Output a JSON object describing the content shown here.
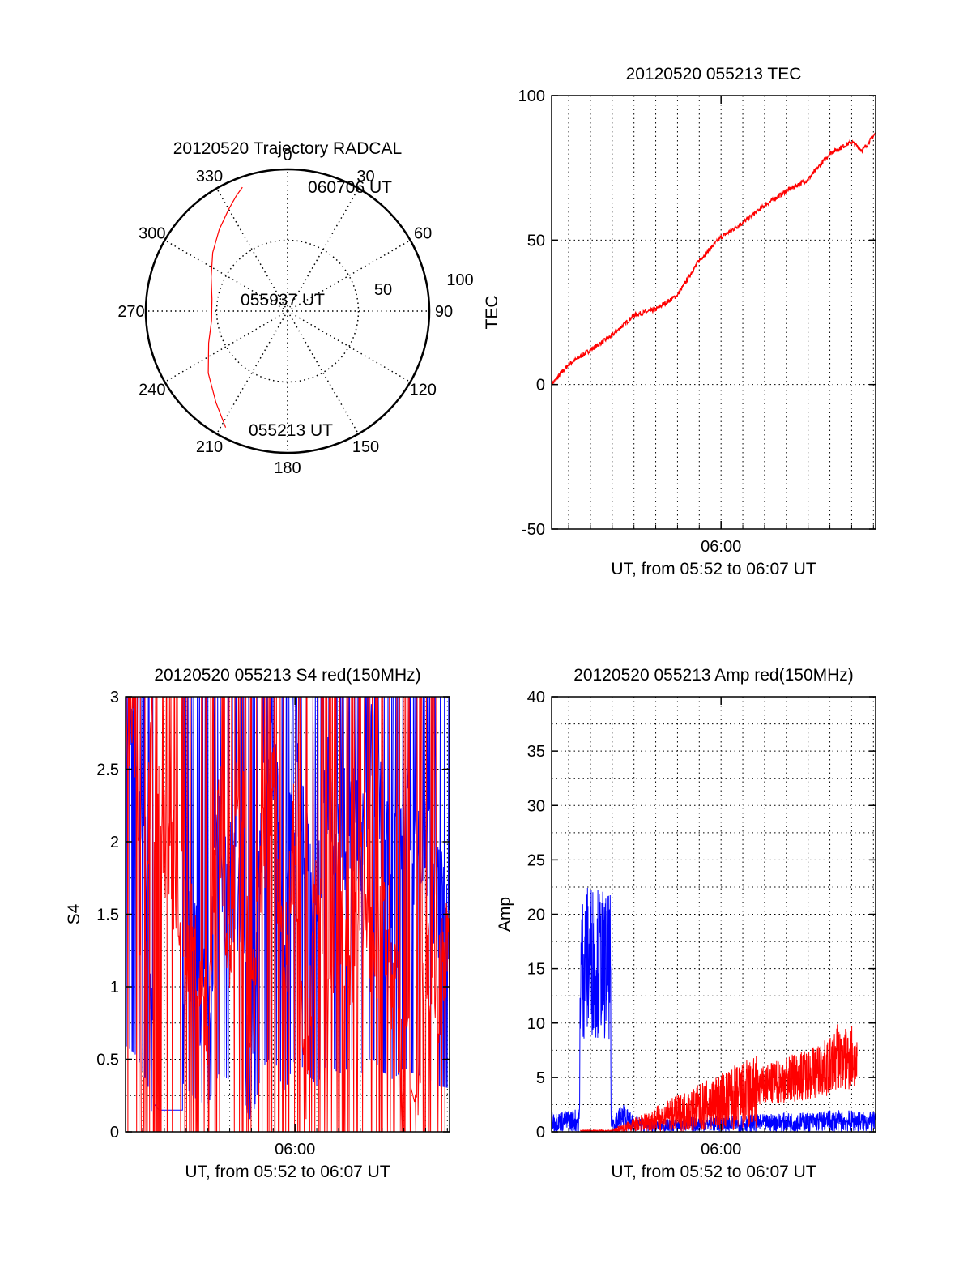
{
  "colors": {
    "red": "#ff0000",
    "blue": "#0000ff",
    "axis": "#000000",
    "grid": "#000000"
  },
  "chart_data": [
    {
      "id": "polar",
      "type": "scatter",
      "subtype": "polar-trajectory",
      "title": "20120520 Trajectory RADCAL",
      "angle_ticks": [
        "0",
        "30",
        "60",
        "90",
        "120",
        "150",
        "180",
        "210",
        "240",
        "270",
        "300",
        "330"
      ],
      "radial_ticks": [
        "50",
        "100"
      ],
      "rlim": [
        0,
        100
      ],
      "grid": true,
      "annotations": [
        {
          "text": "060706 UT",
          "point": "end"
        },
        {
          "text": "055937 UT",
          "point": "mid"
        },
        {
          "text": "055213 UT",
          "point": "start"
        }
      ],
      "series": [
        {
          "color": "red",
          "points": [
            {
              "az": 208,
              "r": 93
            },
            {
              "az": 218,
              "r": 82
            },
            {
              "az": 232,
              "r": 71
            },
            {
              "az": 248,
              "r": 60
            },
            {
              "az": 263,
              "r": 54
            },
            {
              "az": 279,
              "r": 54
            },
            {
              "az": 294,
              "r": 59
            },
            {
              "az": 308,
              "r": 67
            },
            {
              "az": 320,
              "r": 75
            },
            {
              "az": 330,
              "r": 83
            },
            {
              "az": 336,
              "r": 89
            },
            {
              "az": 340,
              "r": 93
            }
          ]
        }
      ]
    },
    {
      "id": "tec",
      "type": "line",
      "title": "20120520 055213 TEC",
      "xlabel": "UT, from 05:52 to 06:07 UT",
      "ylabel": "TEC",
      "xlim": [
        "05:52:13",
        "06:07:06"
      ],
      "ylim": [
        -50,
        100
      ],
      "yticks": [
        "-50",
        "0",
        "50",
        "100"
      ],
      "xticks": [
        {
          "at": "06:00:00",
          "label": "06:00"
        }
      ],
      "grid": true,
      "series": [
        {
          "color": "red",
          "x": [
            "05:52:13",
            "05:53:00",
            "05:54:00",
            "05:55:00",
            "05:56:00",
            "05:57:00",
            "05:58:00",
            "05:59:00",
            "06:00:00",
            "06:01:00",
            "06:02:00",
            "06:03:00",
            "06:04:00",
            "06:05:00",
            "06:06:00",
            "06:06:30",
            "06:07:06"
          ],
          "y": [
            0,
            7,
            12,
            17,
            24,
            26,
            31,
            43,
            51,
            56,
            62,
            67,
            71,
            80,
            84,
            81,
            87
          ]
        }
      ]
    },
    {
      "id": "s4",
      "type": "line",
      "title": "20120520 055213 S4 red(150MHz)",
      "xlabel": "UT, from 05:52 to 06:07 UT",
      "ylabel": "S4",
      "xlim": [
        "05:52:13",
        "06:07:06"
      ],
      "ylim": [
        0,
        3
      ],
      "yticks": [
        "0",
        "0.5",
        "1",
        "1.5",
        "2",
        "2.5",
        "3"
      ],
      "xticks": [
        {
          "at": "06:00:00",
          "label": "06:00"
        }
      ],
      "grid": true,
      "series": [
        {
          "color": "blue",
          "x": [
            "05:52:13",
            "05:52:45",
            "05:53:15",
            "05:53:30",
            "05:53:45",
            "05:54:30",
            "05:54:50",
            "05:55:00",
            "05:55:30",
            "05:56:00",
            "05:56:30",
            "05:57:00",
            "05:57:30",
            "05:58:00",
            "05:58:30",
            "05:59:00",
            "05:59:30",
            "06:00:00",
            "06:00:30",
            "06:01:00",
            "06:01:30",
            "06:02:00",
            "06:02:30",
            "06:03:00",
            "06:03:30",
            "06:04:00",
            "06:04:30",
            "06:05:00",
            "06:05:30",
            "06:06:00",
            "06:06:30",
            "06:07:06"
          ],
          "y": [
            3.0,
            2.6,
            1.6,
            0.2,
            0.15,
            0.15,
            0.15,
            1.5,
            1.1,
            0.9,
            2.0,
            1.8,
            1.4,
            0.3,
            2.2,
            2.7,
            1.3,
            2.5,
            2.1,
            1.6,
            2.4,
            2.0,
            2.2,
            1.9,
            2.6,
            2.1,
            1.8,
            2.2,
            2.0,
            1.9,
            1.6,
            1.5
          ]
        },
        {
          "color": "red",
          "x": [
            "05:52:13",
            "05:52:40",
            "05:53:00",
            "05:53:20",
            "05:56:00",
            "05:56:30",
            "05:57:00",
            "05:57:30",
            "05:58:00",
            "05:58:30",
            "05:59:00",
            "05:59:30",
            "06:00:00",
            "06:00:30",
            "06:01:00",
            "06:01:30",
            "06:02:00",
            "06:02:30",
            "06:03:00",
            "06:03:30",
            "06:04:00",
            "06:04:30",
            "06:05:00",
            "06:05:30",
            "06:06:00",
            "06:06:30",
            "06:07:06"
          ],
          "y": [
            3.0,
            2.8,
            0.4,
            2.5,
            0.8,
            2.4,
            1.2,
            2.7,
            0.6,
            1.9,
            2.3,
            1.0,
            2.1,
            0.5,
            1.8,
            0.9,
            1.6,
            1.2,
            1.7,
            1.3,
            1.4,
            1.1,
            0.5,
            0.2,
            1.3,
            1.0,
            1.2
          ]
        }
      ]
    },
    {
      "id": "amp",
      "type": "line",
      "title": "20120520 055213 Amp red(150MHz)",
      "xlabel": "UT, from 05:52 to 06:07 UT",
      "ylabel": "Amp",
      "xlim": [
        "05:52:13",
        "06:07:06"
      ],
      "ylim": [
        0,
        40
      ],
      "yticks": [
        "0",
        "5",
        "10",
        "15",
        "20",
        "25",
        "30",
        "35",
        "40"
      ],
      "xticks": [
        {
          "at": "06:00:00",
          "label": "06:00"
        }
      ],
      "grid": true,
      "series": [
        {
          "color": "blue",
          "x": [
            "05:52:13",
            "05:53:30",
            "05:53:32",
            "05:54:00",
            "05:54:30",
            "05:54:55",
            "05:54:57",
            "05:55:30",
            "05:56:00",
            "05:57:00",
            "05:58:00",
            "05:59:00",
            "06:00:00",
            "06:01:00",
            "06:02:00",
            "06:03:00",
            "06:04:00",
            "06:05:00",
            "06:06:00",
            "06:07:06"
          ],
          "y": [
            1.0,
            1.2,
            15.0,
            16.0,
            15.5,
            15.0,
            0.8,
            1.5,
            0.8,
            0.6,
            0.7,
            0.8,
            0.8,
            0.9,
            0.9,
            1.0,
            1.0,
            1.1,
            1.1,
            1.0
          ]
        },
        {
          "color": "red",
          "x": [
            "05:53:32",
            "05:54:57",
            "06:05:05",
            "06:05:20",
            "06:05:40",
            "06:06:00",
            "06:06:15"
          ],
          "y": [
            0.1,
            0.1,
            6.0,
            7.0,
            6.5,
            7.0,
            6.0
          ]
        }
      ]
    }
  ]
}
